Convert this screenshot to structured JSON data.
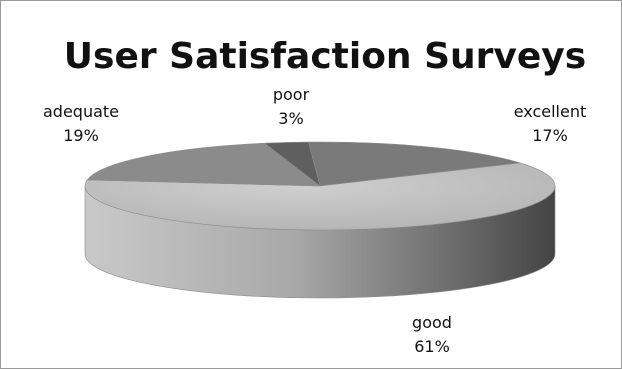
{
  "chart_data": {
    "type": "pie",
    "title": "User Satisfaction Surveys",
    "categories": [
      "excellent",
      "good",
      "adequate",
      "poor"
    ],
    "values": [
      17,
      61,
      19,
      3
    ],
    "labels": [
      {
        "category": "excellent",
        "percent": "17%"
      },
      {
        "category": "good",
        "percent": "61%"
      },
      {
        "category": "adequate",
        "percent": "19%"
      },
      {
        "category": "poor",
        "percent": "3%"
      }
    ],
    "legend": "none",
    "style": "3d",
    "colors": {
      "top": "#b7b7b7",
      "side_light": "#c9c9c9",
      "side_dark": "#4a4a4a",
      "border": "#9a9a9a"
    }
  }
}
